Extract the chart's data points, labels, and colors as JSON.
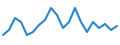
{
  "y_values": [
    55,
    60,
    72,
    68,
    55,
    58,
    65,
    70,
    82,
    75,
    62,
    68,
    82,
    68,
    58,
    68,
    62,
    66,
    60,
    64
  ],
  "line_color": "#2b87c8",
  "line_width": 1.5,
  "background_color": "#ffffff",
  "ylim": [
    45,
    90
  ],
  "xlim": [
    -0.5,
    19.5
  ]
}
